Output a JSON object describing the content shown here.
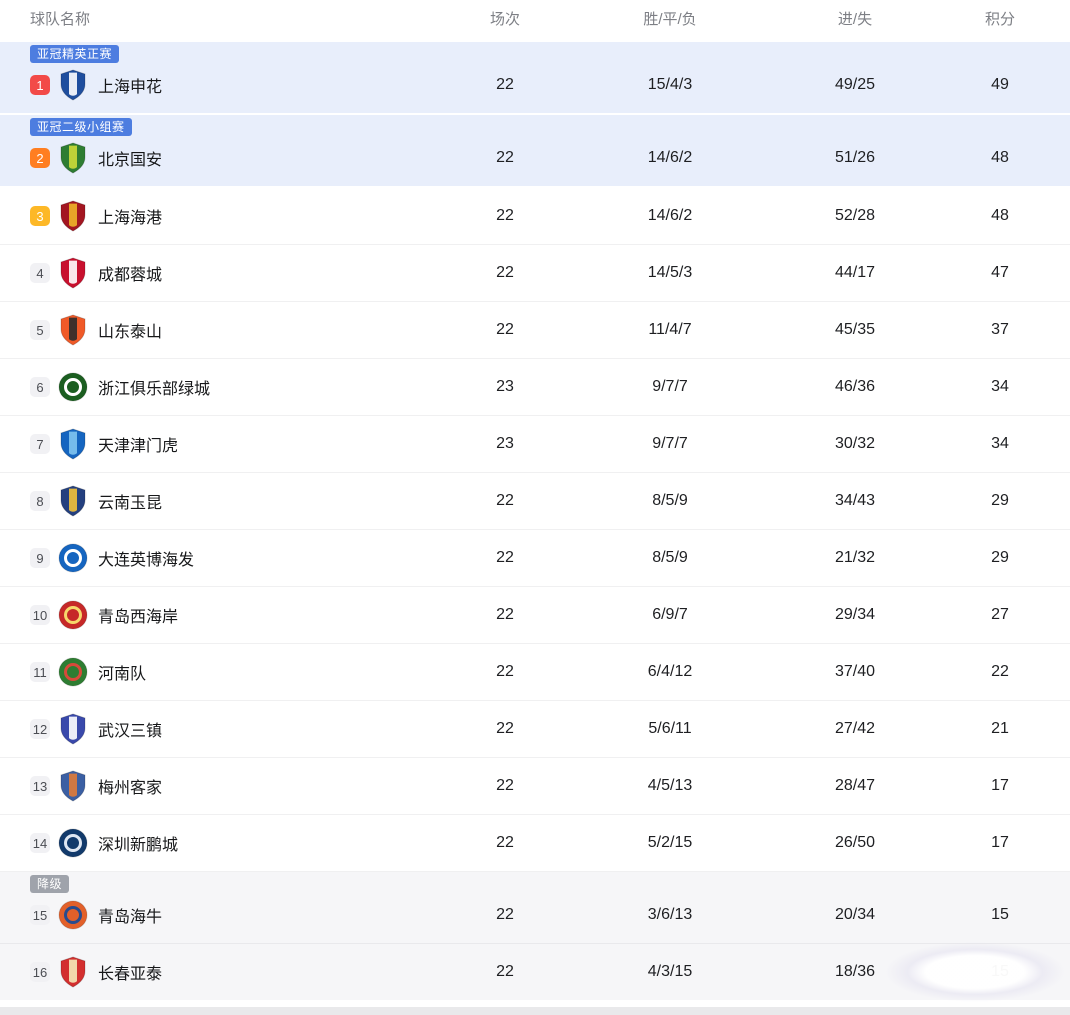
{
  "table": {
    "columns": [
      {
        "key": "name",
        "label": "球队名称"
      },
      {
        "key": "played",
        "label": "场次"
      },
      {
        "key": "wdl",
        "label": "胜/平/负"
      },
      {
        "key": "goals",
        "label": "进/失"
      },
      {
        "key": "points",
        "label": "积分"
      }
    ],
    "rows": [
      {
        "rank": "1",
        "name": "上海申花",
        "played": "22",
        "wdl": "15/4/3",
        "goals": "49/25",
        "points": "49",
        "highlight": "acl",
        "badge": {
          "label": "亚冠精英正赛",
          "color": "#4d7de0"
        },
        "rank_bg": "#f24a48",
        "logo": {
          "shape": "shield",
          "primary": "#1f4e9e",
          "secondary": "#ffffff",
          "accent": "#d63a3a"
        }
      },
      {
        "rank": "2",
        "name": "北京国安",
        "played": "22",
        "wdl": "14/6/2",
        "goals": "51/26",
        "points": "48",
        "highlight": "acl",
        "badge": {
          "label": "亚冠二级小组赛",
          "color": "#4d7de0"
        },
        "rank_bg": "#ff7e21",
        "logo": {
          "shape": "shield",
          "primary": "#2e7d32",
          "secondary": "#cddc39",
          "accent": "#2e7d32"
        }
      },
      {
        "rank": "3",
        "name": "上海海港",
        "played": "22",
        "wdl": "14/6/2",
        "goals": "52/28",
        "points": "48",
        "highlight": "none",
        "badge": null,
        "rank_bg": "#fdb827",
        "logo": {
          "shape": "shield",
          "primary": "#a31621",
          "secondary": "#f0b429",
          "accent": "#a31621"
        }
      },
      {
        "rank": "4",
        "name": "成都蓉城",
        "played": "22",
        "wdl": "14/5/3",
        "goals": "44/17",
        "points": "47",
        "highlight": "none",
        "badge": null,
        "rank_bg": null,
        "logo": {
          "shape": "shield",
          "primary": "#c8102e",
          "secondary": "#ffffff",
          "accent": "#c8102e"
        }
      },
      {
        "rank": "5",
        "name": "山东泰山",
        "played": "22",
        "wdl": "11/4/7",
        "goals": "45/35",
        "points": "37",
        "highlight": "none",
        "badge": null,
        "rank_bg": null,
        "logo": {
          "shape": "shield",
          "primary": "#f05a28",
          "secondary": "#2b2b2b",
          "accent": "#f05a28"
        }
      },
      {
        "rank": "6",
        "name": "浙江俱乐部绿城",
        "played": "23",
        "wdl": "9/7/7",
        "goals": "46/36",
        "points": "34",
        "highlight": "none",
        "badge": null,
        "rank_bg": null,
        "logo": {
          "shape": "circle",
          "primary": "#1b5e20",
          "secondary": "#ffffff",
          "accent": "#1b5e20"
        }
      },
      {
        "rank": "7",
        "name": "天津津门虎",
        "played": "23",
        "wdl": "9/7/7",
        "goals": "30/32",
        "points": "34",
        "highlight": "none",
        "badge": null,
        "rank_bg": null,
        "logo": {
          "shape": "shield",
          "primary": "#1565c0",
          "secondary": "#7fc4ef",
          "accent": "#1565c0"
        }
      },
      {
        "rank": "8",
        "name": "云南玉昆",
        "played": "22",
        "wdl": "8/5/9",
        "goals": "34/43",
        "points": "29",
        "highlight": "none",
        "badge": null,
        "rank_bg": null,
        "logo": {
          "shape": "shield",
          "primary": "#24407f",
          "secondary": "#f3c13a",
          "accent": "#24407f"
        }
      },
      {
        "rank": "9",
        "name": "大连英博海发",
        "played": "22",
        "wdl": "8/5/9",
        "goals": "21/32",
        "points": "29",
        "highlight": "none",
        "badge": null,
        "rank_bg": null,
        "logo": {
          "shape": "circle",
          "primary": "#1565c0",
          "secondary": "#ffffff",
          "accent": "#1565c0"
        }
      },
      {
        "rank": "10",
        "name": "青岛西海岸",
        "played": "22",
        "wdl": "6/9/7",
        "goals": "29/34",
        "points": "27",
        "highlight": "none",
        "badge": null,
        "rank_bg": null,
        "logo": {
          "shape": "circle",
          "primary": "#c62828",
          "secondary": "#f6d76b",
          "accent": "#c62828"
        }
      },
      {
        "rank": "11",
        "name": "河南队",
        "played": "22",
        "wdl": "6/4/12",
        "goals": "37/40",
        "points": "22",
        "highlight": "none",
        "badge": null,
        "rank_bg": null,
        "logo": {
          "shape": "circle",
          "primary": "#2e7d32",
          "secondary": "#d84a3a",
          "accent": "#2e7d32"
        }
      },
      {
        "rank": "12",
        "name": "武汉三镇",
        "played": "22",
        "wdl": "5/6/11",
        "goals": "27/42",
        "points": "21",
        "highlight": "none",
        "badge": null,
        "rank_bg": null,
        "logo": {
          "shape": "shield",
          "primary": "#3949ab",
          "secondary": "#ffffff",
          "accent": "#3949ab"
        }
      },
      {
        "rank": "13",
        "name": "梅州客家",
        "played": "22",
        "wdl": "4/5/13",
        "goals": "28/47",
        "points": "17",
        "highlight": "none",
        "badge": null,
        "rank_bg": null,
        "logo": {
          "shape": "shield",
          "primary": "#3b5fa3",
          "secondary": "#e07b39",
          "accent": "#3b5fa3"
        }
      },
      {
        "rank": "14",
        "name": "深圳新鹏城",
        "played": "22",
        "wdl": "5/2/15",
        "goals": "26/50",
        "points": "17",
        "highlight": "none",
        "badge": null,
        "rank_bg": null,
        "logo": {
          "shape": "circle",
          "primary": "#123a6b",
          "secondary": "#dfe7f2",
          "accent": "#123a6b"
        }
      },
      {
        "rank": "15",
        "name": "青岛海牛",
        "played": "22",
        "wdl": "3/6/13",
        "goals": "20/34",
        "points": "15",
        "highlight": "releg",
        "badge": {
          "label": "降级",
          "color": "#9fa3ab"
        },
        "rank_bg": null,
        "logo": {
          "shape": "circle",
          "primary": "#e2602a",
          "secondary": "#274b8e",
          "accent": "#e2602a"
        }
      },
      {
        "rank": "16",
        "name": "长春亚泰",
        "played": "22",
        "wdl": "4/3/15",
        "goals": "18/36",
        "points": "15",
        "highlight": "releg",
        "badge": null,
        "rank_bg": null,
        "logo": {
          "shape": "shield",
          "primary": "#d32f2f",
          "secondary": "#f5e9b8",
          "accent": "#d32f2f"
        }
      }
    ]
  },
  "colors": {
    "row_highlight_acl": "#e8eefb",
    "row_highlight_relegation": "#f6f6f8",
    "qualification_badge_blue": "#4d7de0",
    "relegation_badge_gray": "#9fa3ab",
    "rank1": "#f24a48",
    "rank2": "#ff7e21",
    "rank3": "#fdb827"
  }
}
